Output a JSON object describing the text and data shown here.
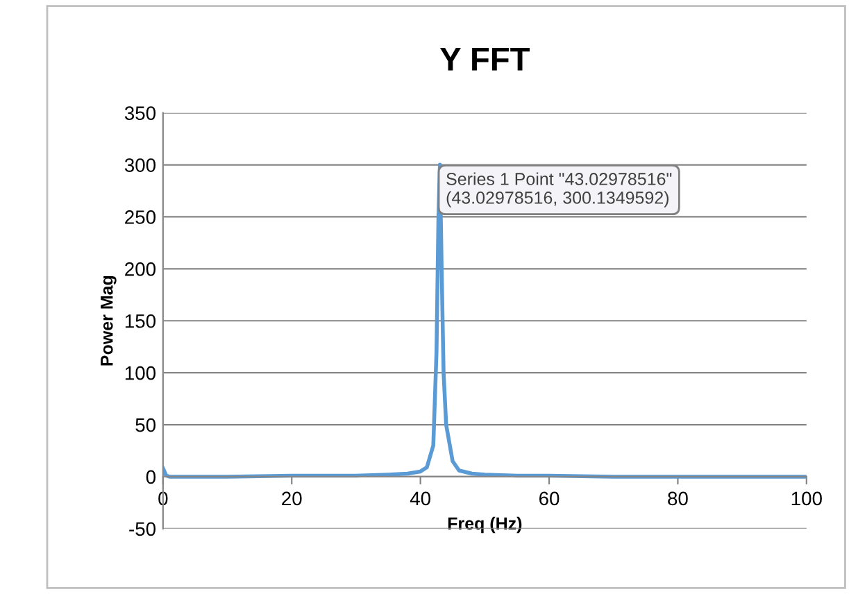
{
  "chart_data": {
    "type": "line",
    "title": "Y FFT",
    "xlabel": "Freq (Hz)",
    "ylabel": "Power Mag",
    "series": [
      {
        "color": "#5b9bd5",
        "x": [
          0,
          0.5,
          1,
          5,
          10,
          20,
          30,
          35,
          38,
          40,
          41,
          42,
          42.5,
          42.8,
          43.02978516,
          43.3,
          43.6,
          44,
          45,
          46,
          48,
          50,
          55,
          60,
          70,
          80,
          90,
          100
        ],
        "values": [
          8,
          1,
          0,
          0,
          0,
          1,
          1,
          2,
          3,
          5,
          9,
          30,
          120,
          250,
          300.1349592,
          200,
          100,
          50,
          15,
          6,
          3,
          2,
          1,
          1,
          0,
          0,
          0,
          0
        ]
      }
    ],
    "xlim": [
      0,
      100
    ],
    "xticks": [
      0,
      20,
      40,
      60,
      80,
      100
    ],
    "ylim": [
      -50,
      350
    ],
    "yticks": [
      -50,
      0,
      50,
      100,
      150,
      200,
      250,
      300,
      350
    ],
    "grid": "y",
    "legend": false,
    "marker": "none",
    "line_style": "solid",
    "annotations": [
      {
        "text": "Series 1 Point \"43.02978516\"\n(43.02978516, 300.1349592)",
        "x": 43.02978516,
        "y": 300.1349592
      }
    ]
  }
}
